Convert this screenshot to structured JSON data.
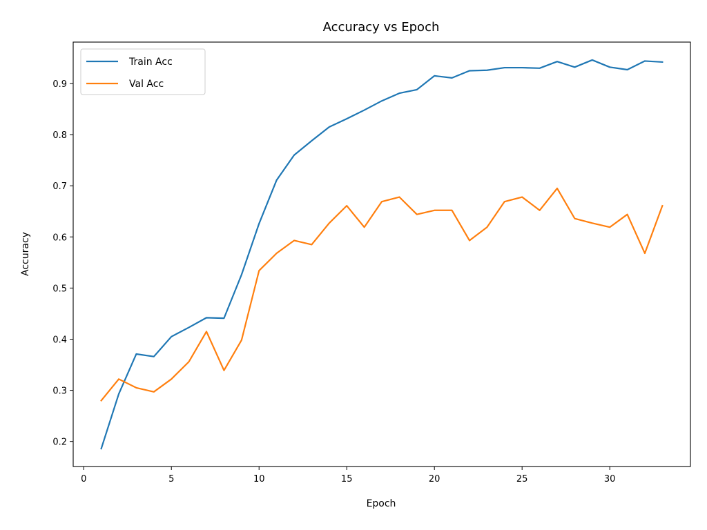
{
  "chart_data": {
    "type": "line",
    "title": "Accuracy vs Epoch",
    "xlabel": "Epoch",
    "ylabel": "Accuracy",
    "xlim": [
      -0.6,
      34.6
    ],
    "ylim": [
      0.151,
      0.981
    ],
    "xticks": [
      0,
      5,
      10,
      15,
      20,
      25,
      30
    ],
    "yticks": [
      0.2,
      0.3,
      0.4,
      0.5,
      0.6,
      0.7,
      0.8,
      0.9
    ],
    "grid": false,
    "legend_position": "top-left",
    "x": [
      1,
      2,
      3,
      4,
      5,
      6,
      7,
      8,
      9,
      10,
      11,
      12,
      13,
      14,
      15,
      16,
      17,
      18,
      19,
      20,
      21,
      22,
      23,
      24,
      25,
      26,
      27,
      28,
      29,
      30,
      31,
      32,
      33
    ],
    "series": [
      {
        "name": "Train Acc",
        "color": "#1f77b4",
        "values": [
          0.186,
          0.293,
          0.371,
          0.366,
          0.405,
          0.423,
          0.442,
          0.441,
          0.526,
          0.626,
          0.711,
          0.76,
          0.788,
          0.815,
          0.831,
          0.848,
          0.866,
          0.881,
          0.888,
          0.915,
          0.911,
          0.925,
          0.926,
          0.931,
          0.931,
          0.93,
          0.943,
          0.932,
          0.946,
          0.932,
          0.927,
          0.944,
          0.942
        ]
      },
      {
        "name": "Val Acc",
        "color": "#ff7f0e",
        "values": [
          0.28,
          0.322,
          0.305,
          0.297,
          0.322,
          0.356,
          0.415,
          0.339,
          0.398,
          0.534,
          0.568,
          0.593,
          0.585,
          0.627,
          0.661,
          0.619,
          0.669,
          0.678,
          0.644,
          0.652,
          0.652,
          0.593,
          0.619,
          0.669,
          0.678,
          0.652,
          0.695,
          0.636,
          0.627,
          0.619,
          0.644,
          0.568,
          0.661
        ]
      }
    ]
  }
}
